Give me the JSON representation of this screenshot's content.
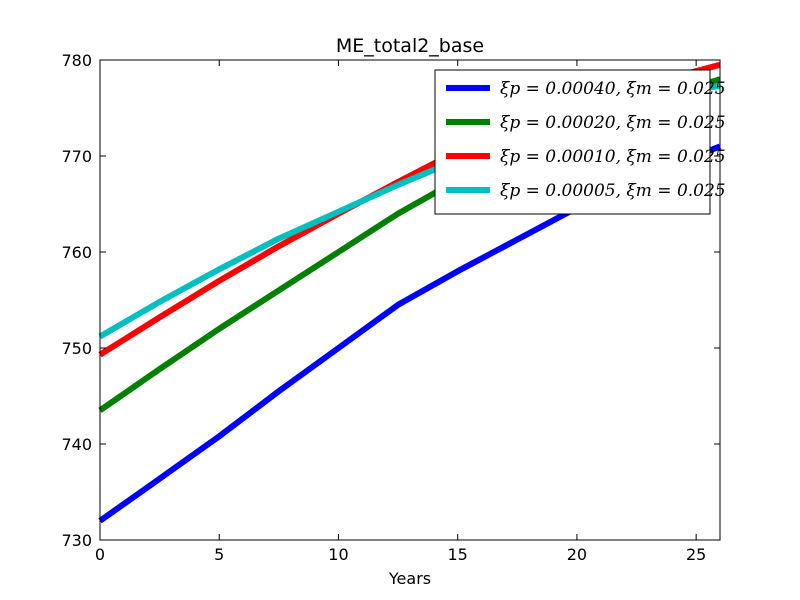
{
  "chart_data": {
    "type": "line",
    "title": "ME_total2_base",
    "xlabel": "Years",
    "ylabel": "",
    "xlim": [
      0,
      26
    ],
    "ylim": [
      730,
      780
    ],
    "xticks": [
      0,
      5,
      10,
      15,
      20,
      25
    ],
    "yticks": [
      730,
      740,
      750,
      760,
      770,
      780
    ],
    "xtick_labels": [
      "0",
      "5",
      "10",
      "15",
      "20",
      "25"
    ],
    "ytick_labels": [
      "730",
      "740",
      "750",
      "760",
      "770",
      "780"
    ],
    "grid": false,
    "legend_position": "top-right",
    "series": [
      {
        "name": "ξp = 0.00040, ξm = 0.025",
        "color": "#0000ff",
        "x": [
          0,
          2,
          5,
          7.5,
          10,
          12.5,
          15,
          17.5,
          20,
          22.5,
          26
        ],
        "y": [
          732,
          735.5,
          740.8,
          745.5,
          750,
          754.5,
          758,
          761.3,
          764.6,
          767.5,
          771
        ]
      },
      {
        "name": "ξp = 0.00020, ξm = 0.025",
        "color": "#008000",
        "x": [
          0,
          2.5,
          5,
          7.5,
          10,
          12.5,
          15,
          17.5,
          20,
          22.5,
          26
        ],
        "y": [
          743.5,
          747.8,
          752,
          756,
          760,
          764,
          767.5,
          770.6,
          773.2,
          775.4,
          778
        ]
      },
      {
        "name": "ξp = 0.00010, ξm = 0.025",
        "color": "#ff0000",
        "x": [
          0,
          2.5,
          5,
          7.5,
          10,
          12.5,
          15,
          17.5,
          20,
          22.5,
          26
        ],
        "y": [
          749.3,
          753.2,
          757,
          760.6,
          764,
          767.3,
          770.5,
          773,
          775.5,
          777.2,
          779.5
        ]
      },
      {
        "name": "ξp = 0.00005, ξm = 0.025",
        "color": "#00bfbf",
        "x": [
          0,
          2.5,
          5,
          7.5,
          10,
          12.5,
          15,
          17.5,
          20,
          22.5,
          26
        ],
        "y": [
          751.2,
          754.8,
          758.2,
          761.4,
          764.2,
          767,
          769.6,
          772,
          774.2,
          776,
          777.3
        ]
      }
    ]
  }
}
